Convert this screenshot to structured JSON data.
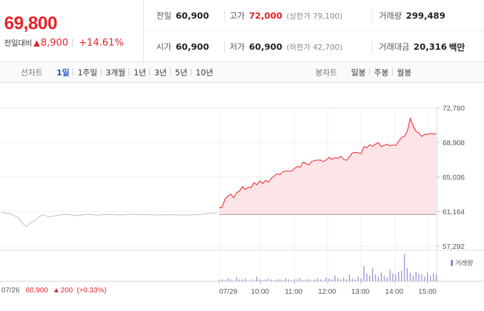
{
  "header": {
    "price": "69,800",
    "change_label": "전일대비",
    "change_arrow": "▲",
    "change_amount": "8,900",
    "change_percent": "+14.61%",
    "row1": {
      "prev_label": "전일",
      "prev_value": "60,900",
      "high_label": "고가",
      "high_value": "72,000",
      "upper_limit": "(상한가 79,100)",
      "volume_label": "거래량",
      "volume_value": "299,489"
    },
    "row2": {
      "open_label": "시가",
      "open_value": "60,900",
      "low_label": "저가",
      "low_value": "60,900",
      "lower_limit": "(하한가 42,700)",
      "amount_label": "거래대금",
      "amount_value": "20,316",
      "amount_unit": "백만"
    }
  },
  "toolbar": {
    "line_label": "선차트",
    "line_periods": [
      "1일",
      "1주일",
      "3개월",
      "1년",
      "3년",
      "5년",
      "10년"
    ],
    "active_period": "1일",
    "candle_label": "봉차트",
    "candle_periods": [
      "일봉",
      "주봉",
      "월봉"
    ]
  },
  "chart_data": {
    "type": "line",
    "y_ticks": [
      "72,780",
      "68,908",
      "65,036",
      "61,164",
      "57,292"
    ],
    "ylim": [
      57292,
      72780
    ],
    "reference_price": 60900,
    "x_ticks": [
      "07/26",
      "07/29",
      "10:00",
      "11:00",
      "12:00",
      "13:00",
      "14:00",
      "15:00"
    ],
    "prev_day": {
      "date": "07/26",
      "values": [
        61060,
        60980,
        60950,
        60700,
        60480,
        59830,
        59460,
        59950,
        60150,
        60620,
        60790,
        60580,
        60620,
        60720,
        60780,
        60830,
        60810,
        60750,
        60700,
        60780,
        60820,
        60840,
        60780,
        60770,
        60820,
        60830,
        60820,
        60800,
        60780,
        60800,
        60830,
        60850,
        60820,
        60800,
        60810,
        60820,
        60790,
        60780,
        60790,
        60800,
        60810,
        60800,
        60780,
        60760,
        60780,
        60790,
        60800,
        60830,
        60900,
        60950,
        60980,
        61020
      ]
    },
    "today": {
      "date": "07/29",
      "values": [
        61570,
        61650,
        62540,
        62900,
        63110,
        62700,
        63270,
        63440,
        63950,
        63610,
        63880,
        63820,
        64390,
        64170,
        64580,
        64300,
        64650,
        64460,
        64900,
        65130,
        65390,
        65300,
        65600,
        65710,
        65700,
        65680,
        65980,
        66210,
        66130,
        66700,
        66540,
        66380,
        66770,
        66880,
        66930,
        66930,
        66750,
        66950,
        67230,
        66990,
        67200,
        67130,
        67340,
        67010,
        66900,
        67270,
        67740,
        67790,
        67750,
        67650,
        68420,
        68310,
        68640,
        68480,
        68710,
        68890,
        68430,
        68570,
        68690,
        68520,
        68620,
        68560,
        69030,
        69450,
        69600,
        70160,
        71600,
        70750,
        70130,
        69950,
        69580,
        69800,
        69830,
        69870,
        69850,
        69900
      ]
    },
    "volume_label": "거래량",
    "volume": [
      1,
      2,
      1,
      3,
      2,
      1,
      4,
      2,
      2,
      3,
      1,
      2,
      1,
      5,
      2,
      1,
      2,
      3,
      2,
      1,
      2,
      2,
      1,
      3,
      2,
      1,
      2,
      2,
      3,
      1,
      2,
      2,
      1,
      2,
      3,
      2,
      1,
      4,
      3,
      2,
      6,
      3,
      2,
      4,
      2,
      7,
      3,
      2,
      5,
      3,
      16,
      8,
      6,
      14,
      7,
      5,
      9,
      6,
      4,
      12,
      8,
      7,
      10,
      11,
      28,
      14,
      9,
      6,
      10,
      8,
      7,
      5,
      9,
      6,
      8,
      7
    ],
    "bottom_info": {
      "date": "07/26",
      "price": "60,900",
      "arrow": "▲",
      "change": "200",
      "percent": "(+0.33%)"
    }
  }
}
